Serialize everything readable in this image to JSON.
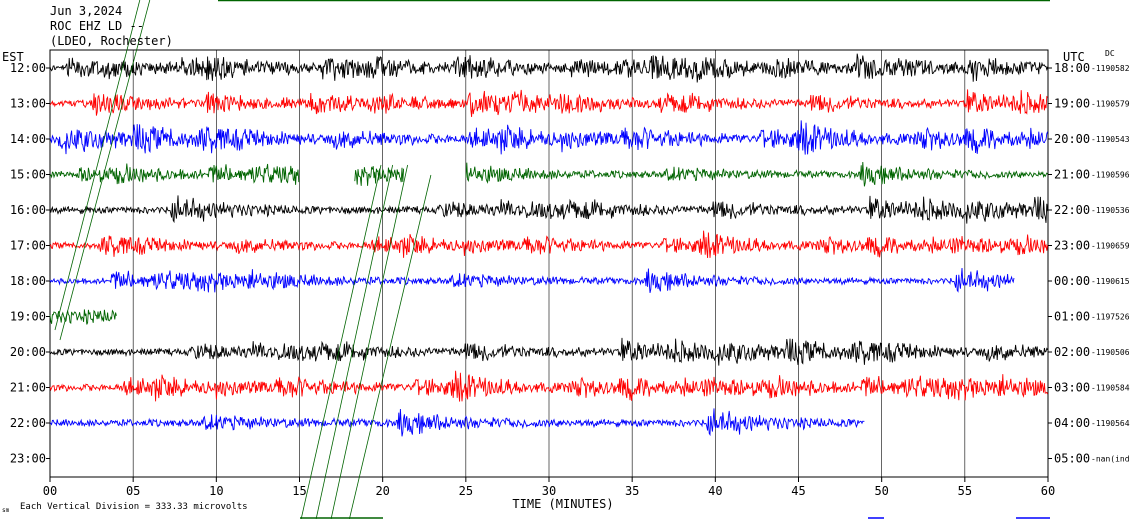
{
  "header": {
    "date": "Jun 3,2024",
    "station": "ROC EHZ LD --",
    "location": "(LDEO, Rochester)"
  },
  "left_tz": "EST",
  "right_tz": "UTC",
  "dc_label": "DC",
  "footer": {
    "scale_note": "Each Vertical Division =  333.33 microvolts",
    "corner_mark": "sm"
  },
  "colors": {
    "black": "#000000",
    "red": "#ff0000",
    "blue": "#0000ff",
    "green": "#006400",
    "grid": "#000000",
    "background": "#ffffff"
  },
  "chart_data": {
    "type": "line",
    "title": "ROC EHZ LD --",
    "xlabel": "TIME (MINUTES)",
    "ylabel": "",
    "xlim": [
      0,
      60
    ],
    "x_ticks": [
      "00",
      "05",
      "10",
      "15",
      "20",
      "25",
      "30",
      "35",
      "40",
      "45",
      "50",
      "55",
      "60"
    ],
    "rows": [
      {
        "left": "12:00",
        "right": "18:00",
        "dc": "-1190582",
        "color": "black",
        "amp": 9,
        "start": 0,
        "end": 60,
        "gaps": []
      },
      {
        "left": "13:00",
        "right": "19:00",
        "dc": "-1190579",
        "color": "red",
        "amp": 9,
        "start": 0,
        "end": 60,
        "gaps": []
      },
      {
        "left": "14:00",
        "right": "20:00",
        "dc": "-1190543",
        "color": "blue",
        "amp": 10,
        "start": 0,
        "end": 60,
        "gaps": []
      },
      {
        "left": "15:00",
        "right": "21:00",
        "dc": "-1190596",
        "color": "green",
        "amp": 8,
        "start": 0,
        "end": 60,
        "gaps": [
          [
            15,
            18.3
          ],
          [
            21.3,
            25
          ]
        ]
      },
      {
        "left": "16:00",
        "right": "22:00",
        "dc": "-1190536",
        "color": "black",
        "amp": 9,
        "start": 0,
        "end": 60,
        "gaps": []
      },
      {
        "left": "17:00",
        "right": "23:00",
        "dc": "-1190659",
        "color": "red",
        "amp": 8,
        "start": 0,
        "end": 60,
        "gaps": []
      },
      {
        "left": "18:00",
        "right": "00:00",
        "dc": "-1190615",
        "color": "blue",
        "amp": 8,
        "start": 0,
        "end": 58,
        "gaps": []
      },
      {
        "left": "19:00",
        "right": "01:00",
        "dc": "-1197526",
        "color": "green",
        "amp": 18,
        "start": 0,
        "end": 4,
        "gaps": []
      },
      {
        "left": "20:00",
        "right": "02:00",
        "dc": "-1190506",
        "color": "black",
        "amp": 9,
        "start": 0,
        "end": 60,
        "gaps": []
      },
      {
        "left": "21:00",
        "right": "03:00",
        "dc": "-1190584",
        "color": "red",
        "amp": 9,
        "start": 0,
        "end": 60,
        "gaps": []
      },
      {
        "left": "22:00",
        "right": "04:00",
        "dc": "-1190564",
        "color": "blue",
        "amp": 9,
        "start": 0,
        "end": 49,
        "gaps": []
      },
      {
        "left": "23:00",
        "right": "05:00",
        "dc": "-nan(ind",
        "color": "black",
        "amp": 0,
        "start": 0,
        "end": 0,
        "gaps": []
      }
    ],
    "grid": true
  }
}
